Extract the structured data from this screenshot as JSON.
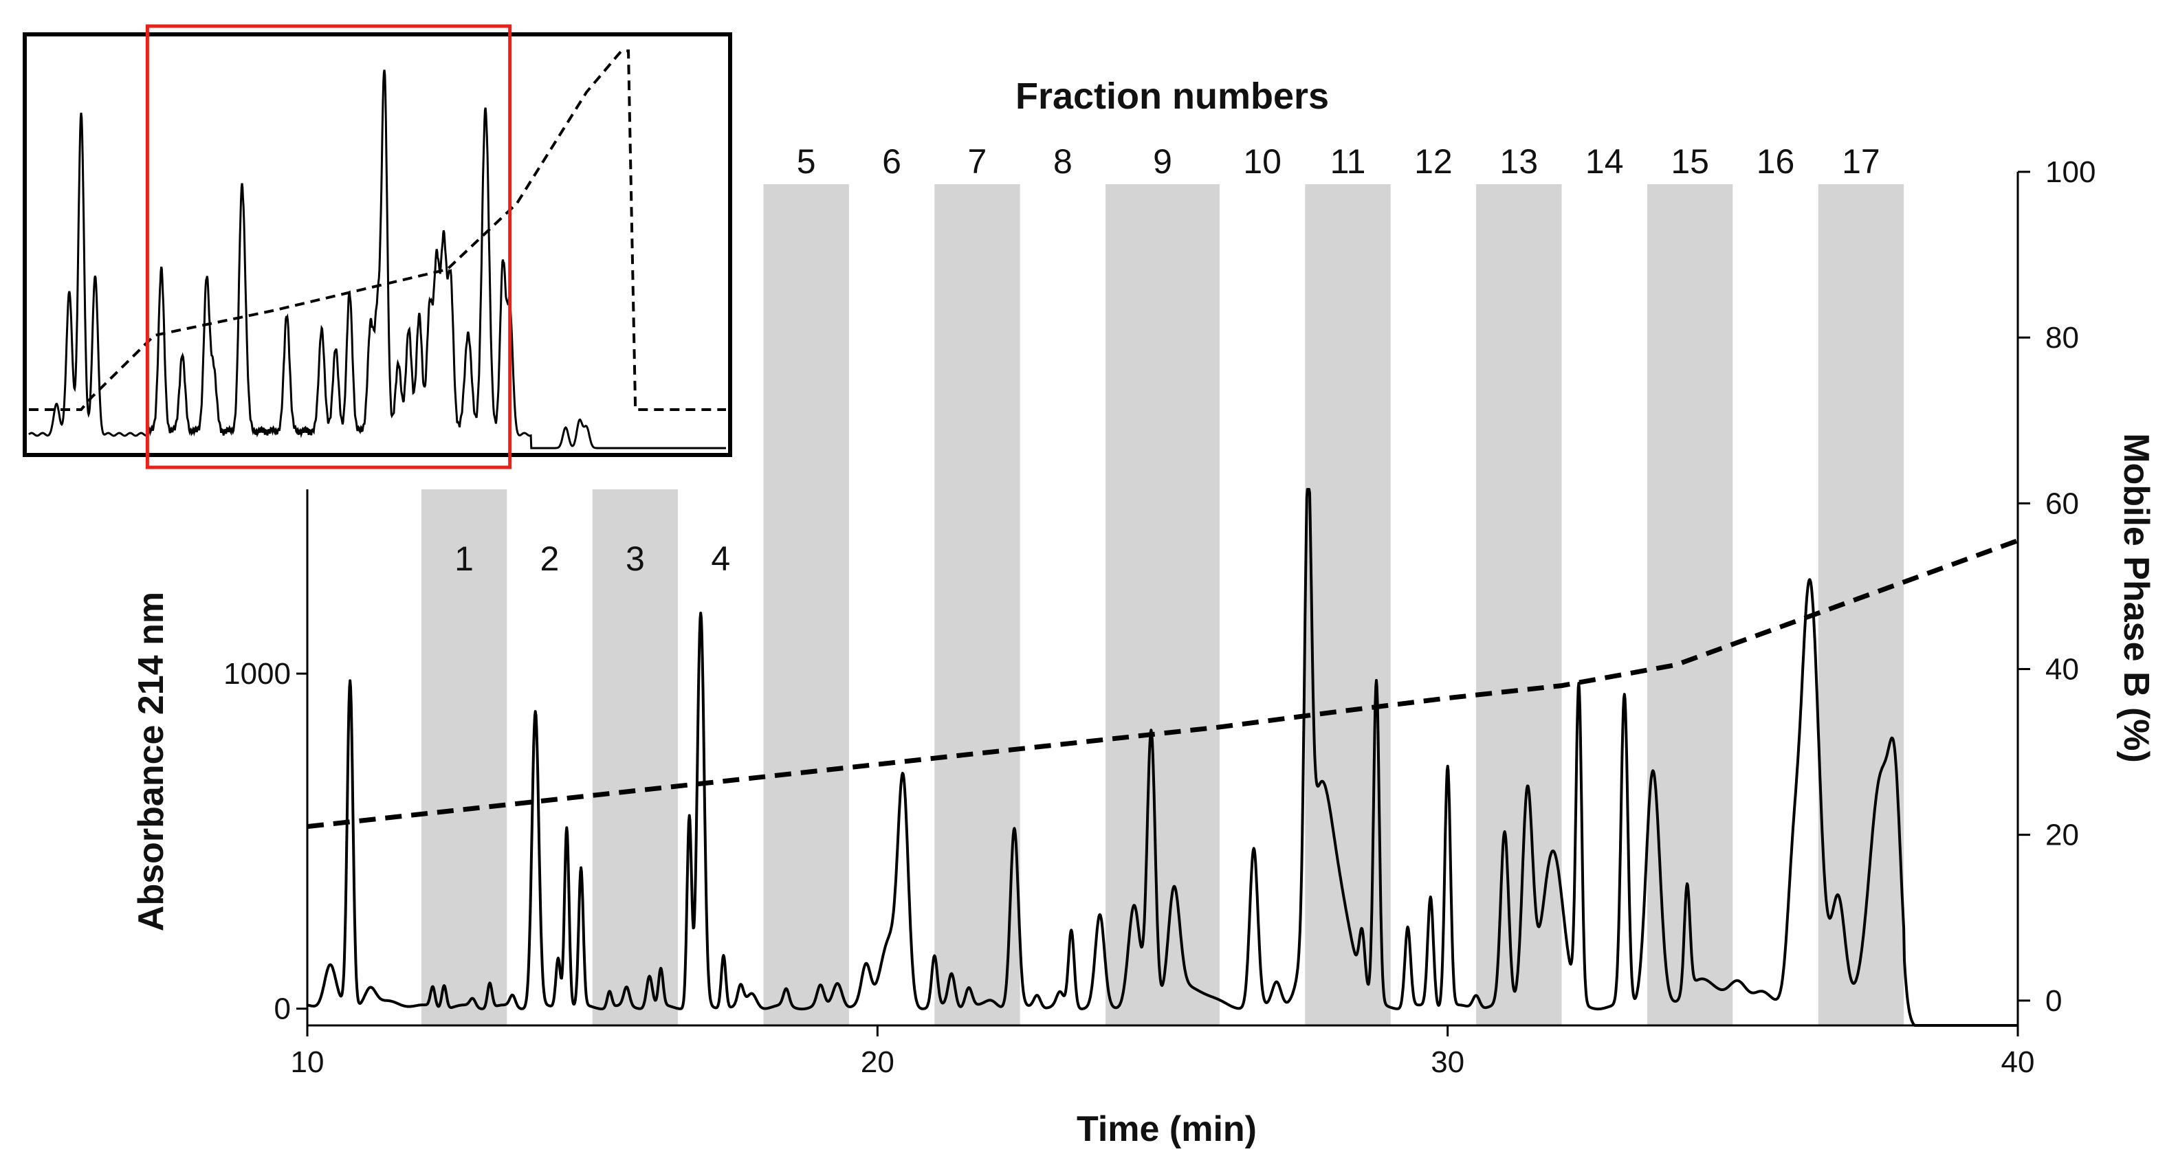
{
  "chart_data": {
    "type": "line",
    "title": "Fraction numbers",
    "xlabel": "Time (min)",
    "ylabel": "Absorbance 214 nm",
    "y2label": "Mobile Phase B (%)",
    "xlim": [
      10,
      40
    ],
    "ylim": [
      -50,
      1550
    ],
    "y2lim": [
      -3,
      100
    ],
    "x_ticks": [
      10,
      20,
      30,
      40
    ],
    "y_ticks": [
      0,
      1000
    ],
    "y2_ticks": [
      0,
      20,
      40,
      60,
      80,
      100
    ],
    "grid": false,
    "colors": {
      "trace": "#000000",
      "band": "#d4d4d4",
      "zoom_box": "#e8221b"
    },
    "fractions": [
      {
        "label": "1",
        "start": 12.0,
        "end": 13.5,
        "shaded": true
      },
      {
        "label": "2",
        "start": 13.5,
        "end": 15.0,
        "shaded": false
      },
      {
        "label": "3",
        "start": 15.0,
        "end": 16.5,
        "shaded": true
      },
      {
        "label": "4",
        "start": 16.5,
        "end": 18.0,
        "shaded": false
      },
      {
        "label": "5",
        "start": 18.0,
        "end": 19.5,
        "shaded": true
      },
      {
        "label": "6",
        "start": 19.5,
        "end": 21.0,
        "shaded": false
      },
      {
        "label": "7",
        "start": 21.0,
        "end": 22.5,
        "shaded": true
      },
      {
        "label": "8",
        "start": 22.5,
        "end": 24.0,
        "shaded": false
      },
      {
        "label": "9",
        "start": 24.0,
        "end": 26.0,
        "shaded": true
      },
      {
        "label": "10",
        "start": 26.0,
        "end": 27.5,
        "shaded": false
      },
      {
        "label": "11",
        "start": 27.5,
        "end": 29.0,
        "shaded": true
      },
      {
        "label": "12",
        "start": 29.0,
        "end": 30.5,
        "shaded": false
      },
      {
        "label": "13",
        "start": 30.5,
        "end": 32.0,
        "shaded": true
      },
      {
        "label": "14",
        "start": 32.0,
        "end": 33.5,
        "shaded": false
      },
      {
        "label": "15",
        "start": 33.5,
        "end": 35.0,
        "shaded": true
      },
      {
        "label": "16",
        "start": 35.0,
        "end": 36.5,
        "shaded": false
      },
      {
        "label": "17",
        "start": 36.5,
        "end": 38.0,
        "shaded": true
      }
    ],
    "series": [
      {
        "name": "Absorbance 214 nm",
        "axis": "left",
        "style": "solid",
        "baseline": 5,
        "peaks": [
          [
            10.4,
            130,
            0.1
          ],
          [
            10.75,
            970,
            0.05
          ],
          [
            11.1,
            60,
            0.1
          ],
          [
            11.5,
            15,
            0.2
          ],
          [
            12.2,
            60,
            0.04
          ],
          [
            12.4,
            70,
            0.04
          ],
          [
            12.9,
            25,
            0.05
          ],
          [
            13.2,
            75,
            0.04
          ],
          [
            13.6,
            35,
            0.05
          ],
          [
            14.0,
            880,
            0.06
          ],
          [
            14.4,
            150,
            0.04
          ],
          [
            14.55,
            540,
            0.04
          ],
          [
            14.8,
            410,
            0.04
          ],
          [
            15.3,
            50,
            0.04
          ],
          [
            15.6,
            55,
            0.05
          ],
          [
            16.0,
            95,
            0.05
          ],
          [
            16.2,
            110,
            0.04
          ],
          [
            16.7,
            570,
            0.04
          ],
          [
            16.9,
            1170,
            0.06
          ],
          [
            17.3,
            160,
            0.04
          ],
          [
            17.6,
            60,
            0.05
          ],
          [
            17.8,
            40,
            0.08
          ],
          [
            18.4,
            50,
            0.05
          ],
          [
            19.0,
            60,
            0.06
          ],
          [
            19.3,
            75,
            0.08
          ],
          [
            19.8,
            120,
            0.08
          ],
          [
            20.2,
            200,
            0.15
          ],
          [
            20.45,
            640,
            0.09
          ],
          [
            21.0,
            150,
            0.05
          ],
          [
            21.3,
            100,
            0.06
          ],
          [
            21.6,
            60,
            0.06
          ],
          [
            22.0,
            20,
            0.1
          ],
          [
            22.4,
            530,
            0.07
          ],
          [
            22.8,
            40,
            0.06
          ],
          [
            23.2,
            40,
            0.06
          ],
          [
            23.4,
            230,
            0.05
          ],
          [
            23.9,
            270,
            0.08
          ],
          [
            24.5,
            300,
            0.1
          ],
          [
            24.8,
            820,
            0.07
          ],
          [
            25.2,
            320,
            0.1
          ],
          [
            25.5,
            60,
            0.3
          ],
          [
            26.6,
            470,
            0.07
          ],
          [
            27.0,
            80,
            0.08
          ],
          [
            27.55,
            1260,
            0.06
          ],
          [
            27.75,
            560,
            0.2
          ],
          [
            28.1,
            280,
            0.25
          ],
          [
            28.5,
            160,
            0.05
          ],
          [
            28.75,
            960,
            0.05
          ],
          [
            29.3,
            240,
            0.05
          ],
          [
            29.7,
            330,
            0.05
          ],
          [
            30.0,
            720,
            0.05
          ],
          [
            30.5,
            40,
            0.06
          ],
          [
            31.0,
            520,
            0.07
          ],
          [
            31.4,
            640,
            0.09
          ],
          [
            31.85,
            470,
            0.18
          ],
          [
            32.3,
            940,
            0.05
          ],
          [
            33.1,
            930,
            0.06
          ],
          [
            33.6,
            700,
            0.12
          ],
          [
            34.2,
            320,
            0.05
          ],
          [
            34.5,
            80,
            0.3
          ],
          [
            35.1,
            60,
            0.15
          ],
          [
            35.5,
            50,
            0.15
          ],
          [
            36.05,
            300,
            0.1
          ],
          [
            36.35,
            1270,
            0.16
          ],
          [
            36.85,
            330,
            0.12
          ],
          [
            37.6,
            690,
            0.2
          ],
          [
            37.85,
            430,
            0.1
          ]
        ]
      },
      {
        "name": "Mobile Phase B (%)",
        "axis": "right",
        "style": "dashed",
        "x": [
          10,
          12,
          14,
          16,
          18,
          20,
          22,
          24,
          26,
          28,
          30,
          32,
          34,
          36,
          38,
          40
        ],
        "y": [
          21,
          22.5,
          24,
          25.5,
          27,
          28.5,
          30,
          31.5,
          33,
          34.8,
          36.5,
          38,
          40.5,
          45.5,
          50.5,
          55.5
        ]
      }
    ],
    "inset": {
      "description_none": "",
      "trace_peaks": [
        [
          0.04,
          45,
          0.004
        ],
        [
          0.058,
          210,
          0.004
        ],
        [
          0.075,
          470,
          0.004
        ],
        [
          0.095,
          230,
          0.004
        ],
        [
          0.19,
          235,
          0.004
        ],
        [
          0.22,
          110,
          0.004
        ],
        [
          0.255,
          220,
          0.004
        ],
        [
          0.265,
          90,
          0.004
        ],
        [
          0.305,
          300,
          0.004
        ],
        [
          0.31,
          110,
          0.004
        ],
        [
          0.37,
          170,
          0.004
        ],
        [
          0.42,
          150,
          0.004
        ],
        [
          0.44,
          120,
          0.004
        ],
        [
          0.46,
          200,
          0.004
        ],
        [
          0.49,
          150,
          0.004
        ],
        [
          0.5,
          170,
          0.004
        ],
        [
          0.51,
          520,
          0.004
        ],
        [
          0.53,
          100,
          0.004
        ],
        [
          0.545,
          150,
          0.004
        ],
        [
          0.56,
          170,
          0.004
        ],
        [
          0.575,
          180,
          0.004
        ],
        [
          0.585,
          240,
          0.004
        ],
        [
          0.595,
          270,
          0.004
        ],
        [
          0.605,
          220,
          0.004
        ],
        [
          0.63,
          140,
          0.005
        ],
        [
          0.655,
          470,
          0.005
        ],
        [
          0.68,
          240,
          0.004
        ],
        [
          0.69,
          180,
          0.004
        ],
        [
          0.77,
          30,
          0.004
        ],
        [
          0.79,
          40,
          0.004
        ],
        [
          0.8,
          30,
          0.004
        ]
      ],
      "gradient_x": [
        0,
        0.075,
        0.09,
        0.18,
        0.35,
        0.6,
        0.7,
        0.8,
        0.85,
        0.86,
        0.87,
        1.0
      ],
      "gradient_y": [
        0.1,
        0.1,
        0.13,
        0.28,
        0.34,
        0.44,
        0.6,
        0.87,
        0.97,
        0.97,
        0.1,
        0.1
      ],
      "zoom_range": [
        0.17,
        0.69
      ]
    }
  }
}
